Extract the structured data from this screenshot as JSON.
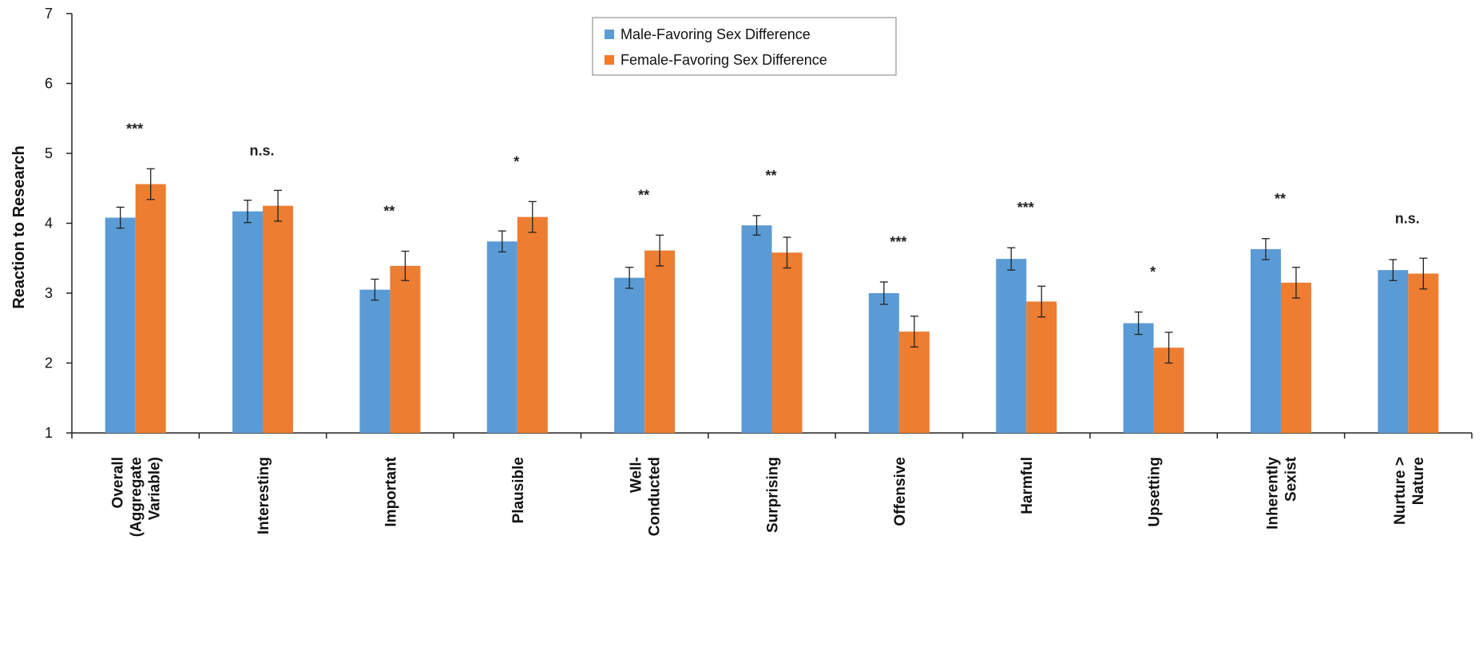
{
  "chart_data": {
    "type": "bar",
    "ylabel": "Reaction to Research",
    "ylim": [
      1,
      7
    ],
    "yticks": [
      "1",
      "2",
      "3",
      "4",
      "5",
      "6",
      "7"
    ],
    "grid": false,
    "legend_position": "top-center",
    "categories": [
      [
        "Overall",
        "(Aggregate",
        "Variable)"
      ],
      [
        "Interesting"
      ],
      [
        "Important"
      ],
      [
        "Plausible"
      ],
      [
        "Well-",
        "Conducted"
      ],
      [
        "Surprising"
      ],
      [
        "Offensive"
      ],
      [
        "Harmful"
      ],
      [
        "Upsetting"
      ],
      [
        "Inherently",
        "Sexist"
      ],
      [
        "Nurture >",
        "Nature"
      ]
    ],
    "series": [
      {
        "name": "Male-Favoring Sex Difference",
        "color": "#5B9BD5",
        "values": [
          4.08,
          4.17,
          3.05,
          3.74,
          3.22,
          3.97,
          3.0,
          3.49,
          2.57,
          3.63,
          3.33
        ],
        "error": [
          0.15,
          0.16,
          0.15,
          0.15,
          0.15,
          0.14,
          0.16,
          0.16,
          0.16,
          0.15,
          0.15
        ]
      },
      {
        "name": "Female-Favoring Sex Difference",
        "color": "#ED7D31",
        "values": [
          4.56,
          4.25,
          3.39,
          4.09,
          3.61,
          3.58,
          2.45,
          2.88,
          2.22,
          3.15,
          3.28
        ],
        "error": [
          0.22,
          0.22,
          0.21,
          0.22,
          0.22,
          0.22,
          0.22,
          0.22,
          0.22,
          0.22,
          0.22
        ]
      }
    ],
    "annotations": [
      "***",
      "n.s.",
      "**",
      "*",
      "**",
      "**",
      "***",
      "***",
      "*",
      "**",
      "n.s."
    ]
  }
}
